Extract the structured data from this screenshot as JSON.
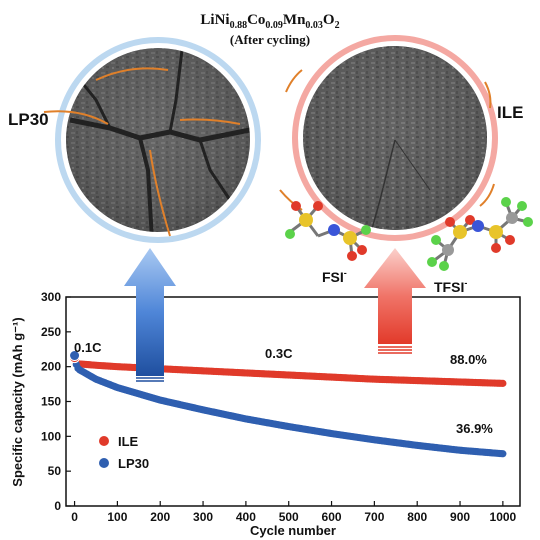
{
  "header": {
    "formula_base": "LiNi",
    "formula_parts": [
      {
        "text": "0.88",
        "sub": true
      },
      {
        "text": "Co",
        "sub": false
      },
      {
        "text": "0.09",
        "sub": true
      },
      {
        "text": "Mn",
        "sub": false
      },
      {
        "text": "0.03",
        "sub": true
      },
      {
        "text": "O",
        "sub": false
      },
      {
        "text": "2",
        "sub": true
      }
    ],
    "subtitle": "(After cycling)"
  },
  "illustration": {
    "left_label": "LP30",
    "right_label": "ILE",
    "anion_1": "FSI",
    "anion_2": "TFSI",
    "anion_charge": "-"
  },
  "chart_data": {
    "type": "scatter",
    "title": "",
    "xlabel": "Cycle number",
    "ylabel": "Specific capacity (mAh g⁻¹)",
    "xlim": [
      -20,
      1040
    ],
    "ylim": [
      0,
      300
    ],
    "xticks": [
      0,
      100,
      200,
      300,
      400,
      500,
      600,
      700,
      800,
      900,
      1000
    ],
    "yticks": [
      0,
      50,
      100,
      150,
      200,
      250,
      300
    ],
    "grid": false,
    "legend_position": "bottom-left",
    "series": [
      {
        "name": "ILE",
        "color": "#e03a2a",
        "x": [
          0,
          5,
          10,
          50,
          100,
          200,
          300,
          400,
          500,
          600,
          700,
          800,
          900,
          1000
        ],
        "y": [
          213,
          205,
          204,
          202,
          200,
          197,
          194,
          191,
          188,
          185,
          182,
          180,
          178,
          176
        ]
      },
      {
        "name": "LP30",
        "color": "#2f5fb0",
        "x": [
          0,
          5,
          10,
          50,
          100,
          200,
          300,
          400,
          500,
          600,
          700,
          800,
          900,
          1000
        ],
        "y": [
          216,
          200,
          196,
          182,
          170,
          152,
          138,
          125,
          114,
          104,
          95,
          87,
          80,
          75
        ]
      }
    ],
    "annotations": [
      "0.1C",
      "0.3C",
      "88.0%",
      "36.9%"
    ]
  }
}
